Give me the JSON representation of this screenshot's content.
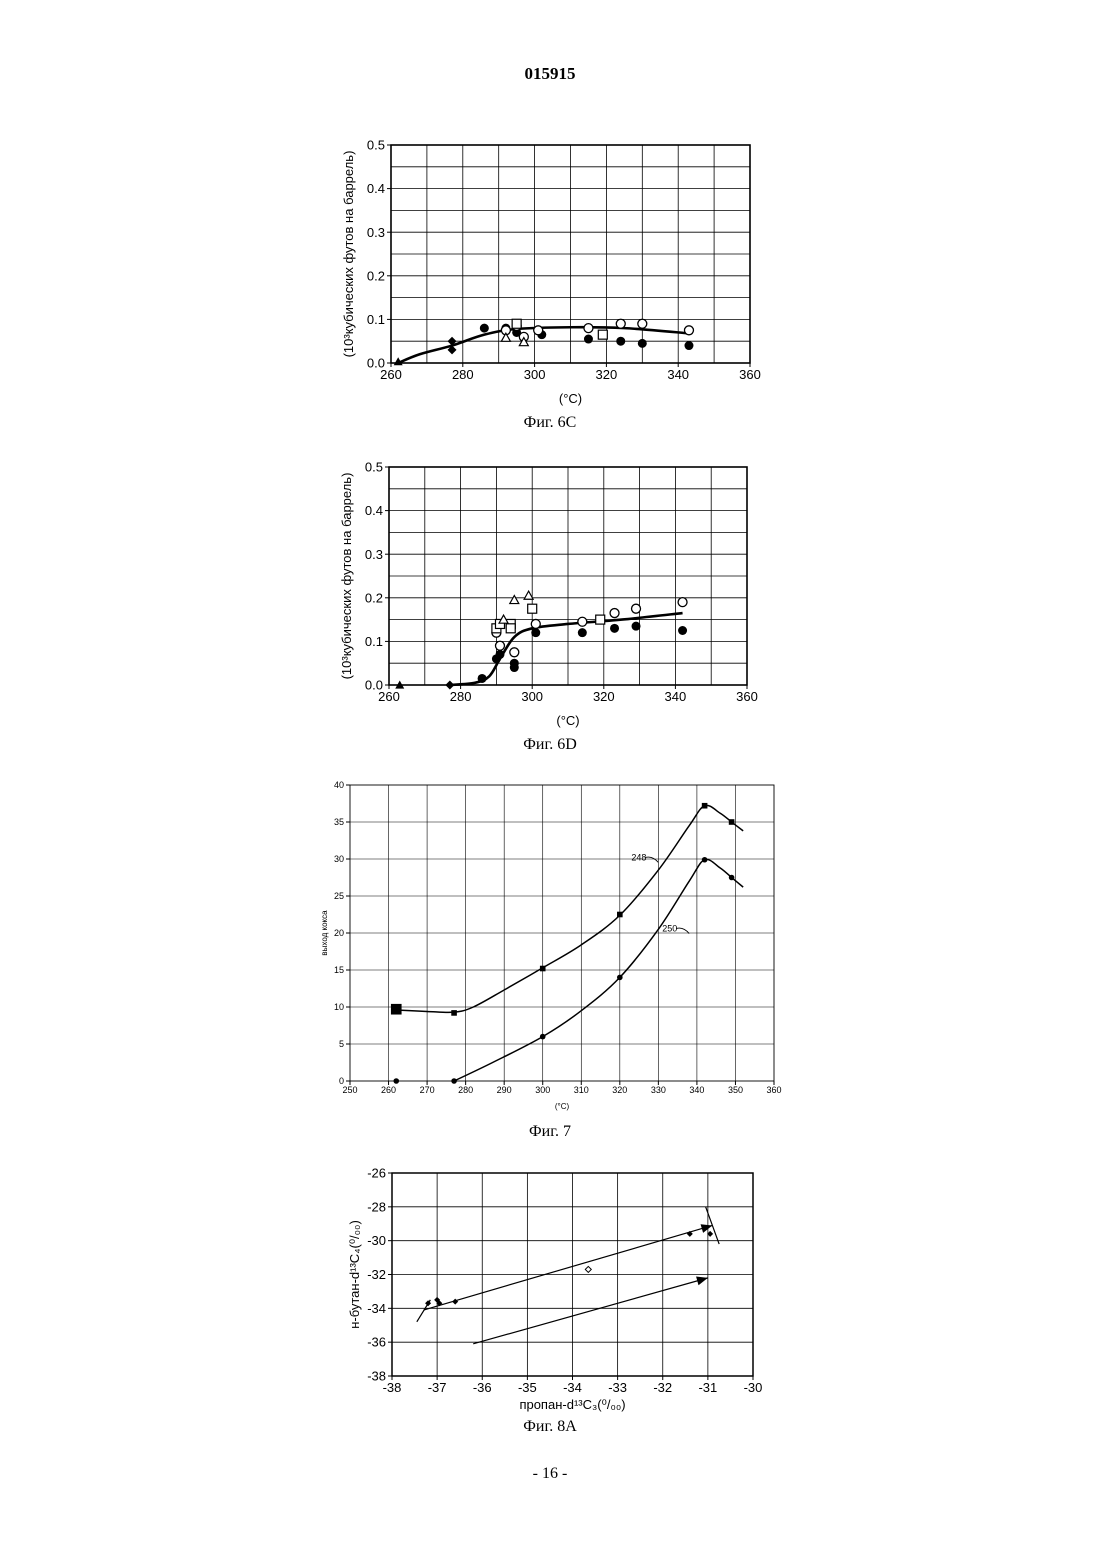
{
  "page": {
    "doc_number": "015915",
    "footer": "- 16 -"
  },
  "chart_data": [
    {
      "id": "fig6c",
      "type": "scatter",
      "caption": "Фиг. 6С",
      "xlabel": "(°C)",
      "ylabel": "(10³кубических футов на баррель)",
      "xlim": [
        260,
        360
      ],
      "ylim": [
        0.0,
        0.5
      ],
      "xticks": [
        260,
        280,
        300,
        320,
        340,
        360
      ],
      "yticks": [
        0.0,
        0.1,
        0.2,
        0.3,
        0.4,
        0.5
      ],
      "xgrid_step": 10,
      "ygrid_step": 0.05,
      "grid": true,
      "series": [
        {
          "marker": "filled-circle",
          "points": [
            [
              286,
              0.08
            ],
            [
              292,
              0.08
            ],
            [
              302,
              0.065
            ],
            [
              315,
              0.055
            ],
            [
              324,
              0.05
            ],
            [
              330,
              0.045
            ],
            [
              343,
              0.04
            ],
            [
              295,
              0.07
            ]
          ]
        },
        {
          "marker": "open-circle",
          "points": [
            [
              292,
              0.075
            ],
            [
              295,
              0.085
            ],
            [
              297,
              0.06
            ],
            [
              301,
              0.075
            ],
            [
              315,
              0.08
            ],
            [
              324,
              0.09
            ],
            [
              330,
              0.09
            ],
            [
              343,
              0.075
            ]
          ]
        },
        {
          "marker": "open-square",
          "points": [
            [
              295,
              0.09
            ],
            [
              319,
              0.065
            ]
          ]
        },
        {
          "marker": "open-triangle",
          "points": [
            [
              292,
              0.058
            ],
            [
              297,
              0.048
            ]
          ]
        },
        {
          "marker": "filled-diamond",
          "points": [
            [
              277,
              0.05
            ],
            [
              277,
              0.03
            ]
          ]
        },
        {
          "marker": "filled-triangle",
          "points": [
            [
              262,
              0.003
            ]
          ]
        }
      ],
      "curve": [
        [
          262,
          0.0
        ],
        [
          268,
          0.02
        ],
        [
          277,
          0.04
        ],
        [
          286,
          0.065
        ],
        [
          295,
          0.078
        ],
        [
          310,
          0.082
        ],
        [
          325,
          0.08
        ],
        [
          343,
          0.068
        ]
      ]
    },
    {
      "id": "fig6d",
      "type": "scatter",
      "caption": "Фиг. 6D",
      "xlabel": "(°C)",
      "ylabel": "(10³кубических футов на баррель)",
      "xlim": [
        260,
        360
      ],
      "ylim": [
        0.0,
        0.5
      ],
      "xticks": [
        260,
        280,
        300,
        320,
        340,
        360
      ],
      "yticks": [
        0.0,
        0.1,
        0.2,
        0.3,
        0.4,
        0.5
      ],
      "xgrid_step": 10,
      "ygrid_step": 0.05,
      "grid": true,
      "series": [
        {
          "marker": "filled-circle",
          "points": [
            [
              286,
              0.015
            ],
            [
              290,
              0.06
            ],
            [
              291,
              0.07
            ],
            [
              295,
              0.04
            ],
            [
              295,
              0.05
            ],
            [
              301,
              0.12
            ],
            [
              314,
              0.12
            ],
            [
              323,
              0.13
            ],
            [
              329,
              0.135
            ],
            [
              342,
              0.125
            ]
          ]
        },
        {
          "marker": "open-circle",
          "points": [
            [
              290,
              0.12
            ],
            [
              291,
              0.09
            ],
            [
              295,
              0.075
            ],
            [
              301,
              0.14
            ],
            [
              314,
              0.145
            ],
            [
              323,
              0.165
            ],
            [
              329,
              0.175
            ],
            [
              342,
              0.19
            ]
          ]
        },
        {
          "marker": "open-square",
          "points": [
            [
              290,
              0.13
            ],
            [
              291,
              0.14
            ],
            [
              294,
              0.14
            ],
            [
              294,
              0.13
            ],
            [
              300,
              0.175
            ],
            [
              319,
              0.15
            ]
          ]
        },
        {
          "marker": "open-triangle",
          "points": [
            [
              292,
              0.15
            ],
            [
              295,
              0.195
            ],
            [
              299,
              0.205
            ]
          ]
        },
        {
          "marker": "filled-diamond",
          "points": [
            [
              277,
              0.0
            ]
          ]
        },
        {
          "marker": "filled-triangle",
          "points": [
            [
              263,
              0.0
            ]
          ]
        }
      ],
      "curve": [
        [
          277,
          0.0
        ],
        [
          284,
          0.005
        ],
        [
          288,
          0.02
        ],
        [
          291,
          0.06
        ],
        [
          295,
          0.11
        ],
        [
          300,
          0.13
        ],
        [
          310,
          0.14
        ],
        [
          325,
          0.15
        ],
        [
          342,
          0.165
        ]
      ]
    },
    {
      "id": "fig7",
      "type": "line",
      "caption": "Фиг. 7",
      "xlabel": "(°C)",
      "ylabel": "выход кокса",
      "xlim": [
        250,
        360
      ],
      "ylim": [
        0,
        40
      ],
      "xticks": [
        250,
        260,
        270,
        280,
        290,
        300,
        310,
        320,
        330,
        340,
        350,
        360
      ],
      "yticks": [
        0,
        5,
        10,
        15,
        20,
        25,
        30,
        35,
        40
      ],
      "grid": true,
      "series": [
        {
          "name": "248",
          "marker": "square",
          "points": [
            [
              262,
              9.7
            ],
            [
              277,
              9.2
            ],
            [
              300,
              15.2
            ],
            [
              320,
              22.5
            ],
            [
              342,
              37.2
            ],
            [
              349,
              35.0
            ]
          ],
          "curve": [
            [
              262,
              9.6
            ],
            [
              270,
              9.4
            ],
            [
              277,
              9.3
            ],
            [
              282,
              10.0
            ],
            [
              290,
              12.3
            ],
            [
              300,
              15.3
            ],
            [
              310,
              18.4
            ],
            [
              320,
              22.4
            ],
            [
              330,
              28.5
            ],
            [
              338,
              34.5
            ],
            [
              342,
              37.2
            ],
            [
              346,
              36.2
            ],
            [
              349,
              35.0
            ],
            [
              352,
              33.8
            ]
          ]
        },
        {
          "name": "250",
          "marker": "circle",
          "points": [
            [
              262,
              0.0
            ],
            [
              277,
              0.0
            ],
            [
              300,
              6.0
            ],
            [
              320,
              14.0
            ],
            [
              342,
              29.9
            ],
            [
              349,
              27.5
            ]
          ],
          "curve": [
            [
              277,
              0.0
            ],
            [
              287,
              2.5
            ],
            [
              300,
              6.0
            ],
            [
              310,
              9.5
            ],
            [
              320,
              14.0
            ],
            [
              330,
              20.5
            ],
            [
              338,
              27.0
            ],
            [
              342,
              29.9
            ],
            [
              346,
              28.8
            ],
            [
              349,
              27.5
            ],
            [
              352,
              26.2
            ]
          ]
        }
      ]
    },
    {
      "id": "fig8a",
      "type": "scatter",
      "caption": "Фиг. 8А",
      "xlabel": "пропан-d¹³C₃(⁰/₀₀)",
      "ylabel": "н-бутан-d¹³C₄(⁰/₀₀)",
      "xlim": [
        -38,
        -30
      ],
      "ylim": [
        -38,
        -26
      ],
      "xticks": [
        -38,
        -37,
        -36,
        -35,
        -34,
        -33,
        -32,
        -31,
        -30
      ],
      "yticks": [
        -38,
        -36,
        -34,
        -32,
        -30,
        -28,
        -26
      ],
      "grid": true,
      "series": [
        {
          "marker": "filled-diamond",
          "points": [
            [
              -37.2,
              -33.7
            ],
            [
              -37.0,
              -33.5
            ],
            [
              -36.95,
              -33.7
            ],
            [
              -36.6,
              -33.6
            ],
            [
              -31.4,
              -29.6
            ],
            [
              -30.95,
              -29.6
            ]
          ]
        },
        {
          "marker": "open-diamond",
          "points": [
            [
              -33.65,
              -31.7
            ]
          ]
        }
      ],
      "arrows": [
        {
          "from": [
            -37.3,
            -34.1
          ],
          "to": [
            -30.9,
            -29.1
          ]
        },
        {
          "from": [
            -36.2,
            -36.1
          ],
          "to": [
            -31.0,
            -32.2
          ]
        }
      ],
      "brackets": [
        {
          "from": [
            -37.45,
            -34.8
          ],
          "to": [
            -37.15,
            -33.5
          ]
        },
        {
          "from": [
            -31.05,
            -28.0
          ],
          "to": [
            -30.75,
            -30.2
          ]
        }
      ]
    }
  ]
}
